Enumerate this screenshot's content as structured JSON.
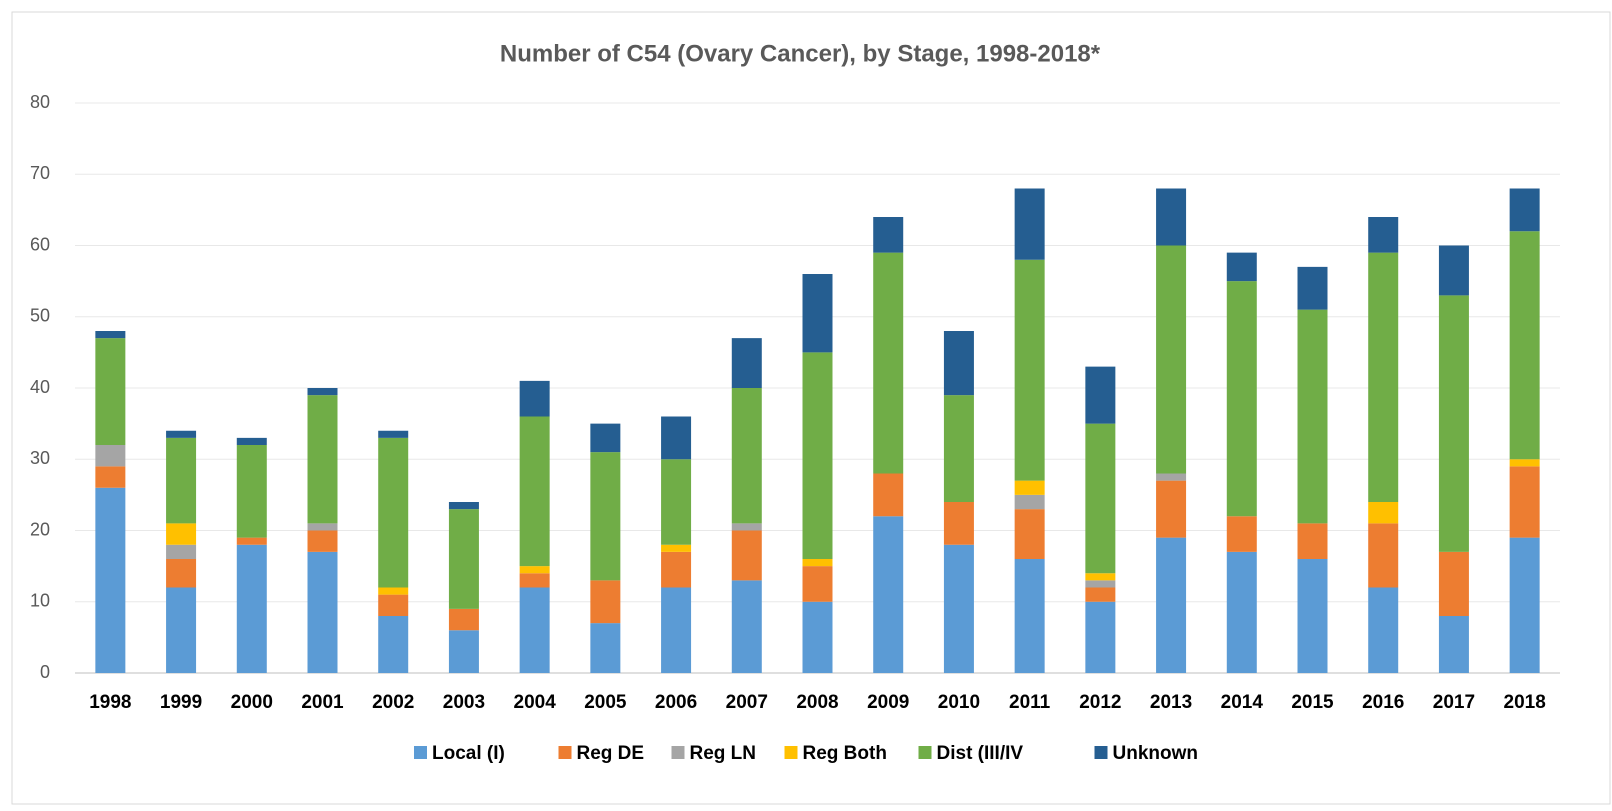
{
  "chart_data": {
    "type": "stacked_bar",
    "title": "Number of C54 (Ovary Cancer), by Stage, 1998-2018*",
    "categories": [
      "1998",
      "1999",
      "2000",
      "2001",
      "2002",
      "2003",
      "2004",
      "2005",
      "2006",
      "2007",
      "2008",
      "2009",
      "2010",
      "2011",
      "2012",
      "2013",
      "2014",
      "2015",
      "2016",
      "2017",
      "2018"
    ],
    "series": [
      {
        "name": "Local (I)",
        "color": "#5b9bd5",
        "values": [
          26,
          12,
          18,
          17,
          8,
          6,
          12,
          7,
          12,
          13,
          10,
          22,
          18,
          16,
          10,
          19,
          17,
          16,
          12,
          8,
          19
        ]
      },
      {
        "name": "Reg DE",
        "color": "#ed7d31",
        "values": [
          3,
          4,
          1,
          3,
          3,
          3,
          2,
          6,
          5,
          7,
          5,
          6,
          6,
          7,
          2,
          8,
          5,
          5,
          9,
          9,
          10
        ]
      },
      {
        "name": "Reg LN",
        "color": "#a5a5a5",
        "values": [
          3,
          2,
          0,
          1,
          0,
          0,
          0,
          0,
          0,
          1,
          0,
          0,
          0,
          2,
          1,
          1,
          0,
          0,
          0,
          0,
          0
        ]
      },
      {
        "name": "Reg Both",
        "color": "#ffc000",
        "values": [
          0,
          3,
          0,
          0,
          1,
          0,
          1,
          0,
          1,
          0,
          1,
          0,
          0,
          2,
          1,
          0,
          0,
          0,
          3,
          0,
          1
        ]
      },
      {
        "name": "Dist (III/IV",
        "color": "#70ad47",
        "values": [
          15,
          12,
          13,
          18,
          21,
          14,
          21,
          18,
          12,
          19,
          29,
          31,
          15,
          31,
          21,
          32,
          33,
          30,
          35,
          36,
          32
        ]
      },
      {
        "name": "Unknown",
        "color": "#255e91",
        "values": [
          1,
          1,
          1,
          1,
          1,
          1,
          5,
          4,
          6,
          7,
          11,
          5,
          9,
          10,
          8,
          8,
          4,
          6,
          5,
          7,
          6
        ]
      }
    ],
    "ylim": [
      0,
      80
    ],
    "yticks": [
      0,
      10,
      20,
      30,
      40,
      50,
      60,
      70,
      80
    ],
    "grid": true,
    "legend": "bottom"
  }
}
